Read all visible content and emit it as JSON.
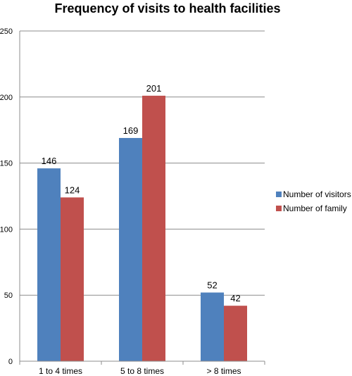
{
  "chart_data": {
    "type": "bar",
    "title": "Frequency of visits to health facilities",
    "xlabel": "",
    "ylabel": "",
    "categories": [
      "1 to 4 times",
      "5 to 8 times",
      "> 8 times"
    ],
    "series": [
      {
        "name": "Number of visitors",
        "values": [
          146,
          169,
          52
        ],
        "color": "#4f81bd"
      },
      {
        "name": "Number of family",
        "values": [
          124,
          201,
          42
        ],
        "color": "#c0504d"
      }
    ],
    "ylim": [
      0,
      250
    ],
    "yticks": [
      0,
      50,
      100,
      150,
      200,
      250
    ],
    "grid": true,
    "legend_position": "right"
  }
}
